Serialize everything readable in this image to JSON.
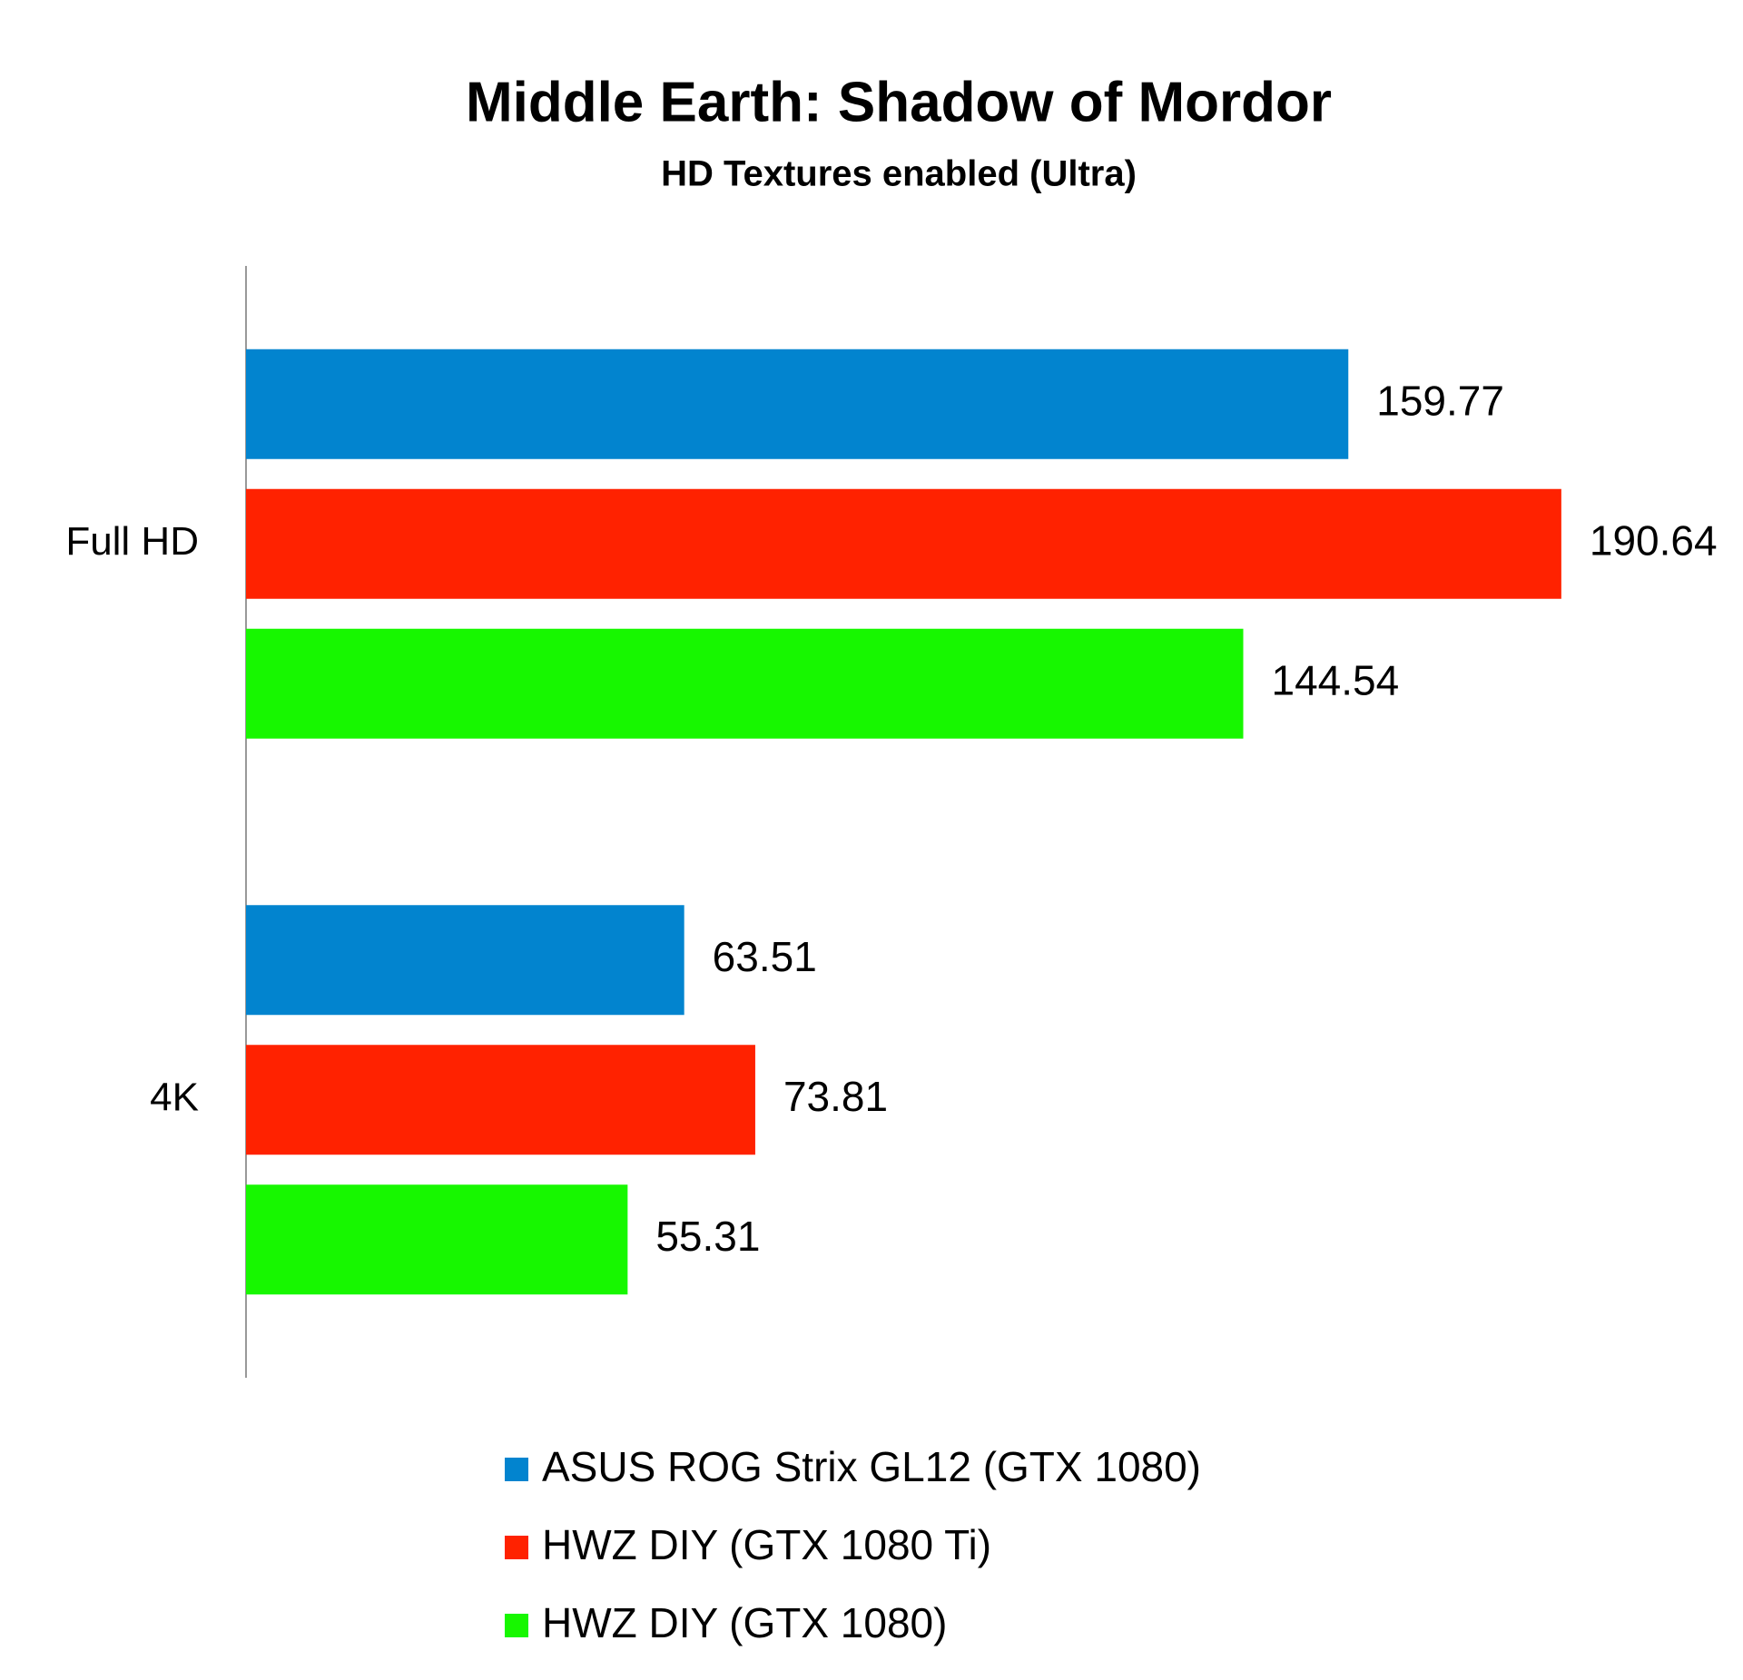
{
  "chart_data": {
    "type": "hbar",
    "title": "Middle Earth: Shadow of Mordor",
    "subtitle": "HD Textures enabled (Ultra)",
    "categories": [
      "Full HD",
      "4K"
    ],
    "series": [
      {
        "name": "ASUS ROG Strix GL12 (GTX 1080)",
        "color": "#0284cf",
        "values": [
          159.77,
          63.51
        ]
      },
      {
        "name": "HWZ DIY (GTX 1080 Ti)",
        "color": "#ff2200",
        "values": [
          190.64,
          73.81
        ]
      },
      {
        "name": "HWZ DIY (GTX 1080)",
        "color": "#17f700",
        "values": [
          144.54,
          55.31
        ]
      }
    ],
    "legend": "bottom"
  }
}
